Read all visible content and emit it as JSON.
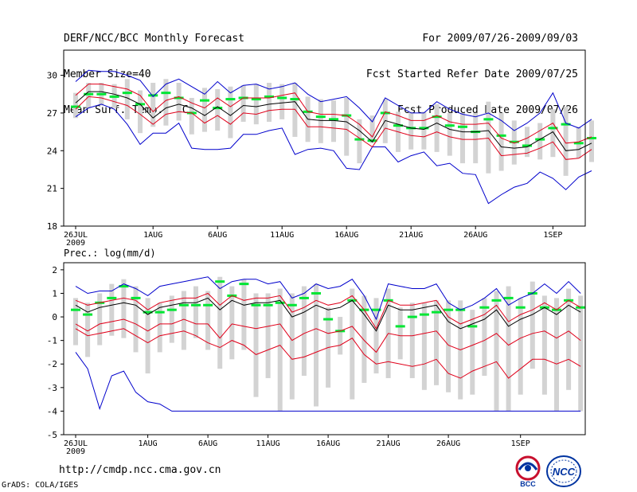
{
  "header": {
    "title": "DERF/NCC/BCC Monthly Forecast",
    "member_size": "Member Size=40",
    "variable": "Mean Surf. Temp.: °C",
    "period": "For 2009/07/26-2009/09/03",
    "started": "Fcst Started Refer Date 2009/07/25",
    "produced": "Fcst Produced Date 2009/07/26"
  },
  "footer": {
    "url": "http://cmdp.ncc.cma.gov.cn",
    "grads": "GrADS: COLA/IGES",
    "logo_left_text": "BCC",
    "logo_right_text": "NCC"
  },
  "colors": {
    "box": "#d3d3d3",
    "median": "#00e633",
    "mean": "#000000",
    "spread": "#e0001a",
    "extreme": "#0000cc",
    "frame": "#000000"
  },
  "chart_data": [
    {
      "type": "line",
      "title": "Mean Surf. Temp.: °C",
      "ylim": [
        18,
        32
      ],
      "yticks": [
        18,
        21,
        24,
        27,
        30
      ],
      "xtick_days": [
        0,
        6,
        11,
        16,
        21,
        26,
        31,
        37
      ],
      "xtick_labels": [
        "26JUL",
        "1AUG",
        "6AUG",
        "11AUG",
        "16AUG",
        "21AUG",
        "26AUG",
        "1SEP"
      ],
      "year_label": "2009",
      "series": [
        {
          "name": "max",
          "values": [
            29.5,
            30.4,
            30.3,
            30.3,
            30.0,
            29.6,
            28.3,
            29.3,
            29.7,
            29.1,
            28.5,
            29.5,
            28.6,
            29.2,
            29.3,
            28.9,
            29.1,
            29.4,
            28.5,
            27.9,
            28.1,
            28.3,
            27.4,
            26.3,
            28.2,
            27.6,
            27.0,
            27.0,
            27.9,
            27.3,
            26.9,
            26.7,
            27.0,
            26.4,
            25.6,
            26.2,
            27.0,
            28.6,
            26.2,
            25.8,
            26.5
          ]
        },
        {
          "name": "upper",
          "values": [
            28.4,
            29.3,
            29.3,
            29.1,
            28.9,
            28.4,
            27.1,
            28.0,
            28.3,
            27.8,
            27.4,
            28.2,
            27.5,
            28.2,
            28.2,
            28.2,
            28.4,
            28.6,
            27.1,
            26.9,
            26.9,
            26.8,
            26.1,
            25.1,
            27.1,
            26.8,
            26.4,
            26.4,
            26.8,
            26.3,
            26.1,
            26.1,
            26.2,
            25.0,
            24.6,
            25.0,
            25.6,
            26.2,
            24.6,
            24.7,
            25.1
          ]
        },
        {
          "name": "mean",
          "values": [
            27.8,
            28.7,
            28.7,
            28.5,
            28.2,
            27.7,
            26.6,
            27.4,
            27.7,
            27.4,
            26.8,
            27.5,
            26.8,
            27.6,
            27.5,
            27.7,
            27.8,
            27.9,
            26.5,
            26.4,
            26.4,
            26.3,
            25.6,
            24.7,
            26.4,
            26.1,
            25.8,
            25.7,
            26.2,
            25.7,
            25.5,
            25.5,
            25.6,
            24.3,
            24.2,
            24.3,
            24.9,
            25.5,
            24.0,
            24.1,
            24.6
          ]
        },
        {
          "name": "lower",
          "values": [
            27.3,
            28.3,
            28.2,
            27.9,
            27.6,
            26.9,
            26.1,
            26.9,
            27.1,
            27.0,
            26.2,
            26.8,
            26.1,
            27.0,
            26.9,
            27.2,
            27.3,
            27.3,
            25.9,
            25.9,
            25.8,
            25.7,
            25.0,
            24.3,
            25.8,
            25.5,
            25.2,
            25.1,
            25.5,
            25.1,
            24.9,
            24.9,
            25.0,
            23.6,
            23.7,
            23.8,
            24.2,
            24.7,
            23.3,
            23.4,
            24.1
          ]
        },
        {
          "name": "min",
          "values": [
            26.7,
            27.4,
            27.7,
            27.3,
            26.1,
            24.5,
            25.4,
            25.4,
            26.2,
            24.2,
            24.1,
            24.1,
            24.2,
            25.3,
            25.3,
            25.6,
            25.8,
            23.7,
            24.1,
            24.2,
            24.0,
            22.6,
            22.5,
            24.3,
            24.3,
            23.1,
            23.6,
            23.9,
            22.8,
            23.0,
            22.2,
            22.1,
            19.8,
            20.5,
            21.1,
            21.4,
            22.3,
            21.8,
            20.9,
            21.9,
            22.4
          ]
        },
        {
          "name": "median",
          "values": [
            27.5,
            28.5,
            28.5,
            28.3,
            28.6,
            27.7,
            28.4,
            28.6,
            28.2,
            27.0,
            28.0,
            27.4,
            28.1,
            28.2,
            28.1,
            28.3,
            28.2,
            28.1,
            27.1,
            26.7,
            26.5,
            26.8,
            24.9,
            24.8,
            27.0,
            26.0,
            25.8,
            25.8,
            26.7,
            26.0,
            25.9,
            25.5,
            26.5,
            25.2,
            24.7,
            24.4,
            24.9,
            25.8,
            26.1,
            24.6,
            25.0
          ]
        },
        {
          "name": "box_top",
          "values": [
            28.6,
            29.4,
            29.4,
            29.3,
            29.7,
            28.8,
            29.4,
            29.7,
            29.4,
            28.2,
            29.0,
            28.9,
            29.1,
            29.2,
            29.3,
            29.4,
            29.3,
            29.4,
            28.3,
            28.1,
            28.0,
            28.2,
            26.5,
            26.8,
            28.1,
            27.1,
            27.1,
            27.1,
            27.7,
            27.0,
            27.0,
            27.0,
            27.9,
            27.0,
            26.4,
            25.9,
            26.2,
            27.3,
            27.5,
            25.9,
            26.4
          ]
        },
        {
          "name": "box_bot",
          "values": [
            26.6,
            27.4,
            27.6,
            27.4,
            26.5,
            25.4,
            25.9,
            26.0,
            26.4,
            25.3,
            25.5,
            25.6,
            25.0,
            26.3,
            26.1,
            26.3,
            26.5,
            25.1,
            24.7,
            24.6,
            24.7,
            23.6,
            23.0,
            24.6,
            24.6,
            23.9,
            24.1,
            24.1,
            23.9,
            23.6,
            23.0,
            23.0,
            22.2,
            22.4,
            22.9,
            23.5,
            23.3,
            23.5,
            22.0,
            23.4,
            23.1
          ]
        }
      ]
    },
    {
      "type": "line",
      "title": "Prec.: log(mm/d)",
      "ylim": [
        -5,
        2.3
      ],
      "yticks": [
        -5,
        -4,
        -3,
        -2,
        -1,
        0,
        1,
        2
      ],
      "xtick_days": [
        0,
        6,
        11,
        16,
        21,
        26,
        31,
        37
      ],
      "xtick_labels": [
        "26JUL",
        "1AUG",
        "6AUG",
        "11AUG",
        "16AUG",
        "21AUG",
        "26AUG",
        "1SEP"
      ],
      "year_label": "2009",
      "series": [
        {
          "name": "max",
          "values": [
            1.3,
            1.0,
            1.1,
            1.1,
            1.4,
            1.2,
            0.9,
            1.3,
            1.4,
            1.5,
            1.6,
            1.7,
            1.2,
            1.5,
            1.6,
            1.6,
            1.4,
            1.5,
            0.8,
            1.0,
            1.4,
            1.2,
            1.3,
            1.6,
            0.9,
            -0.1,
            1.4,
            1.3,
            1.2,
            1.2,
            1.4,
            0.6,
            0.3,
            0.5,
            0.8,
            1.2,
            0.5,
            0.8,
            1.0,
            1.4,
            1.0,
            1.5,
            1.0
          ]
        },
        {
          "name": "upper",
          "values": [
            0.7,
            0.5,
            0.6,
            0.7,
            0.8,
            0.7,
            0.3,
            0.6,
            0.7,
            0.8,
            0.8,
            1.0,
            0.5,
            0.9,
            0.7,
            0.8,
            0.8,
            0.9,
            0.2,
            0.4,
            0.7,
            0.5,
            0.6,
            0.9,
            0.3,
            -0.5,
            0.7,
            0.5,
            0.5,
            0.6,
            0.7,
            0.0,
            -0.3,
            -0.1,
            0.1,
            0.5,
            -0.2,
            0.1,
            0.3,
            0.6,
            0.3,
            0.7,
            0.4
          ]
        },
        {
          "name": "mean",
          "values": [
            0.5,
            0.2,
            0.4,
            0.5,
            0.6,
            0.5,
            0.1,
            0.4,
            0.5,
            0.6,
            0.6,
            0.8,
            0.3,
            0.7,
            0.5,
            0.6,
            0.6,
            0.7,
            0.0,
            0.2,
            0.5,
            0.3,
            0.4,
            0.7,
            0.1,
            -0.6,
            0.5,
            0.3,
            0.3,
            0.4,
            0.5,
            -0.2,
            -0.5,
            -0.3,
            -0.1,
            0.3,
            -0.4,
            -0.1,
            0.1,
            0.4,
            0.1,
            0.5,
            0.2
          ]
        },
        {
          "name": "lower",
          "values": [
            -0.3,
            -0.6,
            -0.3,
            -0.2,
            -0.1,
            -0.3,
            -0.6,
            -0.3,
            -0.3,
            -0.1,
            -0.3,
            -0.3,
            -0.9,
            -0.3,
            -0.4,
            -0.5,
            -0.4,
            -0.3,
            -1.0,
            -0.7,
            -0.5,
            -0.7,
            -0.6,
            -0.4,
            -1.0,
            -1.5,
            -0.7,
            -0.8,
            -0.8,
            -0.7,
            -0.6,
            -1.2,
            -1.4,
            -1.2,
            -1.0,
            -0.7,
            -1.2,
            -0.9,
            -0.7,
            -0.6,
            -0.9,
            -0.6,
            -1.0
          ]
        },
        {
          "name": "low2",
          "values": [
            -0.5,
            -0.8,
            -0.7,
            -0.6,
            -0.5,
            -0.8,
            -1.1,
            -0.8,
            -0.7,
            -0.6,
            -0.8,
            -1.1,
            -1.3,
            -1.0,
            -1.2,
            -1.6,
            -1.4,
            -1.2,
            -1.8,
            -1.7,
            -1.5,
            -1.3,
            -1.2,
            -0.9,
            -1.6,
            -2.0,
            -1.9,
            -2.0,
            -2.1,
            -2.0,
            -1.8,
            -2.4,
            -2.6,
            -2.3,
            -2.1,
            -1.9,
            -2.6,
            -2.2,
            -1.8,
            -1.8,
            -2.0,
            -1.8,
            -2.1
          ]
        },
        {
          "name": "min",
          "values": [
            -1.5,
            -2.2,
            -3.9,
            -2.5,
            -2.3,
            -3.2,
            -3.6,
            -3.7,
            -4.0,
            -4.0,
            -4.0,
            -4.0,
            -4.0,
            -4.0,
            -4.0,
            -4.0,
            -4.0,
            -4.0,
            -4.0,
            -4.0,
            -4.0,
            -4.0,
            -4.0,
            -4.0,
            -4.0,
            -4.0,
            -4.0,
            -4.0,
            -4.0,
            -4.0,
            -4.0,
            -4.0,
            -4.0,
            -4.0,
            -4.0,
            -4.0,
            -4.0,
            -4.0,
            -4.0,
            -4.0,
            -4.0,
            -4.0,
            -4.0
          ]
        },
        {
          "name": "median",
          "values": [
            0.3,
            0.1,
            0.6,
            0.8,
            1.3,
            0.8,
            0.2,
            0.2,
            0.3,
            0.5,
            0.5,
            0.5,
            1.5,
            0.9,
            1.4,
            0.5,
            0.5,
            0.6,
            0.5,
            0.8,
            1.0,
            -0.1,
            -0.6,
            0.7,
            0.3,
            0.3,
            0.7,
            -0.4,
            0.0,
            0.1,
            0.2,
            0.3,
            0.3,
            -0.4,
            0.4,
            0.7,
            0.8,
            0.4,
            1.0,
            0.4,
            0.3,
            0.7,
            0.4
          ]
        },
        {
          "name": "box_top",
          "values": [
            0.8,
            0.6,
            1.0,
            1.4,
            1.6,
            1.3,
            0.8,
            0.6,
            0.9,
            1.1,
            1.3,
            1.1,
            1.7,
            1.3,
            1.6,
            1.0,
            1.0,
            1.2,
            1.0,
            1.3,
            1.4,
            0.4,
            0.0,
            1.2,
            0.9,
            0.8,
            1.2,
            0.4,
            0.6,
            0.6,
            0.7,
            0.7,
            0.7,
            0.3,
            0.8,
            1.1,
            1.3,
            0.8,
            1.5,
            0.9,
            0.8,
            1.2,
            0.9
          ]
        },
        {
          "name": "box_bot",
          "values": [
            -1.2,
            -1.7,
            -1.2,
            -0.8,
            -0.9,
            -1.5,
            -2.4,
            -1.5,
            -1.1,
            -1.4,
            -0.9,
            -1.4,
            -2.2,
            -1.8,
            -1.4,
            -3.4,
            -2.6,
            -4.0,
            -3.5,
            -2.5,
            -3.8,
            -3.0,
            -1.6,
            -3.5,
            -2.8,
            -2.4,
            -2.6,
            -1.8,
            -2.6,
            -3.1,
            -2.9,
            -3.2,
            -3.5,
            -3.3,
            -2.5,
            -4.0,
            -4.0,
            -3.3,
            -2.2,
            -3.3,
            -4.0,
            -3.1,
            -4.0
          ]
        }
      ]
    }
  ]
}
